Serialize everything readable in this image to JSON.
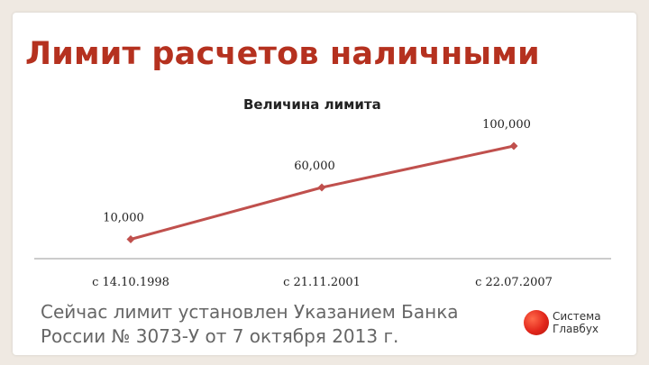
{
  "slide": {
    "title": "Лимит расчетов наличными",
    "footnote_lines": [
      "Сейчас лимит установлен Указанием Банка",
      "России № 3073-У от 7 октября 2013 г."
    ],
    "logo": {
      "line1": "Система",
      "line2": "Главбух",
      "accent": "#e2261b"
    }
  },
  "chart_data": {
    "type": "line",
    "title": "Величина лимита",
    "categories": [
      "с 14.10.1998",
      "с 21.11.2001",
      "с 22.07.2007"
    ],
    "series": [
      {
        "values": [
          10000,
          60000,
          100000
        ],
        "data_labels": [
          "10,000",
          "60,000",
          "100,000"
        ],
        "color": "#c0504d"
      }
    ],
    "ylim": [
      0,
      120000
    ],
    "grid": false,
    "legend": "none"
  }
}
